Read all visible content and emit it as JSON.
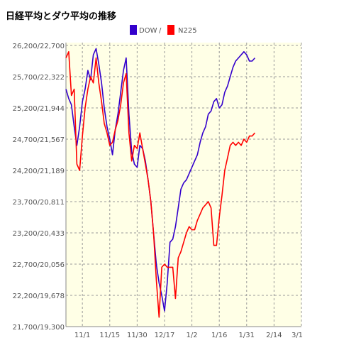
{
  "chart_data": {
    "type": "line",
    "title": "日経平均とダウ平均の推移",
    "y_labels": [
      "26,200/22,700",
      "25,700/22,322",
      "25,200/21,944",
      "24,700/21,567",
      "24,200/21,189",
      "23,700/20,811",
      "23,200/20,433",
      "22,700/20,056",
      "22,200/19,678",
      "21,700/19,300"
    ],
    "ylim": [
      21700,
      26200
    ],
    "x_tick_labels": [
      "11/1",
      "11/15",
      "11/30",
      "12/17",
      "1/2",
      "1/16",
      "1/31",
      "2/14",
      "3/1"
    ],
    "x_tick_positions": [
      6,
      16,
      26,
      36,
      46,
      56,
      66,
      76,
      86
    ],
    "xlim": [
      0,
      86
    ],
    "grid": true,
    "legend_position": "top",
    "series": [
      {
        "name": "DOW",
        "color": "#3300cc",
        "points": [
          [
            0,
            25500
          ],
          [
            1,
            25350
          ],
          [
            2,
            25250
          ],
          [
            3,
            24900
          ],
          [
            4,
            24600
          ],
          [
            5,
            24900
          ],
          [
            6,
            25300
          ],
          [
            7,
            25500
          ],
          [
            8,
            25800
          ],
          [
            9,
            25650
          ],
          [
            10,
            26050
          ],
          [
            11,
            26150
          ],
          [
            12,
            25900
          ],
          [
            13,
            25600
          ],
          [
            14,
            25200
          ],
          [
            15,
            24900
          ],
          [
            16,
            24700
          ],
          [
            17,
            24450
          ],
          [
            18,
            24850
          ],
          [
            19,
            25100
          ],
          [
            20,
            25450
          ],
          [
            21,
            25800
          ],
          [
            22,
            26000
          ],
          [
            23,
            25100
          ],
          [
            24,
            24500
          ],
          [
            25,
            24300
          ],
          [
            26,
            24250
          ],
          [
            27,
            24600
          ],
          [
            28,
            24550
          ],
          [
            29,
            24350
          ],
          [
            30,
            24050
          ],
          [
            31,
            23700
          ],
          [
            32,
            23200
          ],
          [
            33,
            22700
          ],
          [
            34,
            22400
          ],
          [
            35,
            22200
          ],
          [
            36,
            21950
          ],
          [
            37,
            22400
          ],
          [
            38,
            23050
          ],
          [
            39,
            23100
          ],
          [
            40,
            23300
          ],
          [
            41,
            23600
          ],
          [
            42,
            23900
          ],
          [
            43,
            24000
          ],
          [
            44,
            24050
          ],
          [
            45,
            24150
          ],
          [
            46,
            24250
          ],
          [
            47,
            24350
          ],
          [
            48,
            24450
          ],
          [
            49,
            24650
          ],
          [
            50,
            24800
          ],
          [
            51,
            24900
          ],
          [
            52,
            25100
          ],
          [
            53,
            25150
          ],
          [
            54,
            25300
          ],
          [
            55,
            25350
          ],
          [
            56,
            25200
          ],
          [
            57,
            25250
          ],
          [
            58,
            25450
          ],
          [
            59,
            25550
          ],
          [
            60,
            25700
          ],
          [
            61,
            25850
          ],
          [
            62,
            25950
          ],
          [
            63,
            26000
          ],
          [
            64,
            26050
          ],
          [
            65,
            26100
          ],
          [
            66,
            26050
          ],
          [
            67,
            25950
          ],
          [
            68,
            25950
          ],
          [
            69,
            26000
          ]
        ]
      },
      {
        "name": "N225",
        "color": "#ff0000",
        "points": [
          [
            0,
            26000
          ],
          [
            1,
            26100
          ],
          [
            2,
            25400
          ],
          [
            3,
            25500
          ],
          [
            4,
            24300
          ],
          [
            5,
            24200
          ],
          [
            6,
            24750
          ],
          [
            7,
            25200
          ],
          [
            8,
            25500
          ],
          [
            9,
            25700
          ],
          [
            10,
            25600
          ],
          [
            11,
            26000
          ],
          [
            12,
            25600
          ],
          [
            13,
            25300
          ],
          [
            14,
            24950
          ],
          [
            15,
            24800
          ],
          [
            16,
            24600
          ],
          [
            17,
            24650
          ],
          [
            18,
            24850
          ],
          [
            19,
            25000
          ],
          [
            20,
            25250
          ],
          [
            21,
            25600
          ],
          [
            22,
            25750
          ],
          [
            23,
            24800
          ],
          [
            24,
            24350
          ],
          [
            25,
            24600
          ],
          [
            26,
            24550
          ],
          [
            27,
            24800
          ],
          [
            28,
            24550
          ],
          [
            29,
            24300
          ],
          [
            30,
            24050
          ],
          [
            31,
            23700
          ],
          [
            32,
            23200
          ],
          [
            33,
            22450
          ],
          [
            34,
            21850
          ],
          [
            35,
            22650
          ],
          [
            36,
            22700
          ],
          [
            37,
            22650
          ],
          [
            38,
            22650
          ],
          [
            39,
            22650
          ],
          [
            40,
            22150
          ],
          [
            41,
            22800
          ],
          [
            42,
            22900
          ],
          [
            43,
            23050
          ],
          [
            44,
            23200
          ],
          [
            45,
            23300
          ],
          [
            46,
            23250
          ],
          [
            47,
            23250
          ],
          [
            48,
            23400
          ],
          [
            49,
            23500
          ],
          [
            50,
            23600
          ],
          [
            51,
            23650
          ],
          [
            52,
            23700
          ],
          [
            53,
            23600
          ],
          [
            54,
            23000
          ],
          [
            55,
            23000
          ],
          [
            56,
            23450
          ],
          [
            57,
            23800
          ],
          [
            58,
            24200
          ],
          [
            59,
            24400
          ],
          [
            60,
            24600
          ],
          [
            61,
            24650
          ],
          [
            62,
            24600
          ],
          [
            63,
            24650
          ],
          [
            64,
            24600
          ],
          [
            65,
            24700
          ],
          [
            66,
            24650
          ],
          [
            67,
            24750
          ],
          [
            68,
            24750
          ],
          [
            69,
            24800
          ]
        ]
      }
    ]
  }
}
